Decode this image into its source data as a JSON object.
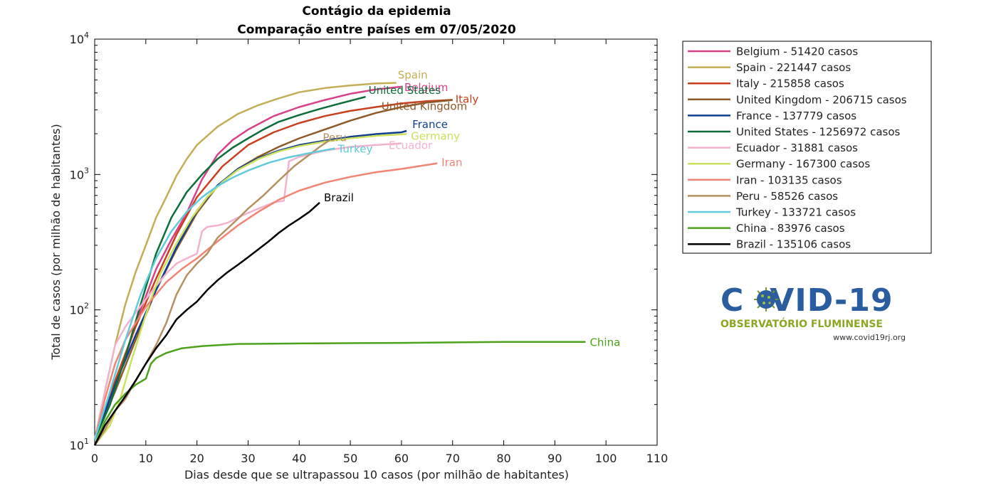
{
  "chart_data": {
    "type": "line",
    "title": "Contágio da epidemia",
    "subtitle": "Comparação entre países em 07/05/2020",
    "xlabel": "Dias desde que se ultrapassou 10 casos (por milhão de habitantes)",
    "ylabel": "Total de casos (por milhão de habitantes)",
    "xlim": [
      0,
      110
    ],
    "ylim": [
      10,
      10000
    ],
    "yscale": "log",
    "xticks": [
      "0",
      "10",
      "20",
      "30",
      "40",
      "50",
      "60",
      "70",
      "80",
      "90",
      "100",
      "110"
    ],
    "yticks": [
      {
        "base": "10",
        "exp": "1"
      },
      {
        "base": "10",
        "exp": "2"
      },
      {
        "base": "10",
        "exp": "3"
      },
      {
        "base": "10",
        "exp": "4"
      }
    ],
    "grid": false,
    "legend_position": "outside-right",
    "series": [
      {
        "name": "Belgium",
        "legend": "Belgium - 51420 casos",
        "label": "Belgium",
        "color": "#d9408a",
        "x": [
          0,
          3,
          6,
          9,
          12,
          15,
          18,
          21,
          24,
          27,
          30,
          35,
          40,
          45,
          50,
          55,
          60
        ],
        "y": [
          11,
          20,
          45,
          100,
          200,
          330,
          520,
          920,
          1400,
          1800,
          2150,
          2700,
          3150,
          3550,
          3950,
          4250,
          4450
        ]
      },
      {
        "name": "Spain",
        "legend": "Spain - 221447 casos",
        "label": "Spain",
        "color": "#c2ae56",
        "x": [
          0,
          2,
          4,
          6,
          8,
          10,
          12,
          14,
          16,
          18,
          20,
          24,
          28,
          32,
          36,
          40,
          45,
          50,
          55,
          59
        ],
        "y": [
          11,
          25,
          55,
          110,
          190,
          300,
          480,
          680,
          980,
          1300,
          1650,
          2250,
          2800,
          3250,
          3650,
          4050,
          4350,
          4550,
          4700,
          4750
        ]
      },
      {
        "name": "Italy",
        "legend": "Italy - 215858 casos",
        "label": "Italy",
        "color": "#c9401e",
        "x": [
          0,
          4,
          8,
          12,
          16,
          20,
          25,
          30,
          35,
          40,
          45,
          50,
          55,
          60,
          65,
          70
        ],
        "y": [
          11,
          30,
          75,
          170,
          360,
          680,
          1150,
          1650,
          2050,
          2400,
          2700,
          2950,
          3150,
          3350,
          3480,
          3560
        ]
      },
      {
        "name": "United Kingdom",
        "legend": "United Kingdom - 206715 casos",
        "label": "United Kingdom",
        "color": "#8f5a2a",
        "x": [
          0,
          4,
          8,
          12,
          16,
          20,
          24,
          28,
          32,
          36,
          40,
          45,
          50,
          55,
          60,
          65,
          70
        ],
        "y": [
          11,
          25,
          60,
          140,
          280,
          520,
          820,
          1100,
          1350,
          1600,
          1850,
          2150,
          2500,
          2850,
          3150,
          3400,
          3550
        ]
      },
      {
        "name": "France",
        "legend": "France - 137779 casos",
        "label": "France",
        "color": "#103d8f",
        "x": [
          0,
          4,
          8,
          12,
          16,
          20,
          24,
          28,
          32,
          36,
          40,
          45,
          50,
          55,
          60,
          61
        ],
        "y": [
          11,
          28,
          65,
          140,
          290,
          540,
          830,
          1100,
          1320,
          1500,
          1650,
          1780,
          1900,
          1990,
          2050,
          2100
        ]
      },
      {
        "name": "United States",
        "legend": "United States - 1256972 casos",
        "label": "United States",
        "color": "#0d6e3a",
        "x": [
          0,
          3,
          6,
          9,
          12,
          15,
          18,
          21,
          24,
          27,
          30,
          33,
          36,
          40,
          44,
          48,
          53
        ],
        "y": [
          11,
          20,
          45,
          110,
          260,
          480,
          740,
          1000,
          1300,
          1580,
          1850,
          2150,
          2450,
          2750,
          3050,
          3350,
          3750
        ]
      },
      {
        "name": "Ecuador",
        "legend": "Ecuador - 31881 casos",
        "label": "Ecuador",
        "color": "#f3b3cf",
        "x": [
          0,
          2,
          4,
          6,
          8,
          10,
          12,
          14,
          16,
          18,
          20,
          21,
          22,
          24,
          26,
          28,
          30,
          32,
          35,
          36,
          37,
          38,
          40,
          45,
          50,
          55,
          60
        ],
        "y": [
          11,
          25,
          55,
          75,
          95,
          120,
          150,
          185,
          220,
          240,
          260,
          380,
          410,
          420,
          440,
          480,
          520,
          560,
          620,
          630,
          640,
          1250,
          1350,
          1500,
          1600,
          1650,
          1700
        ]
      },
      {
        "name": "Germany",
        "legend": "Germany - 167300 casos",
        "label": "Germany",
        "color": "#cde15f",
        "x": [
          0,
          3,
          5,
          7,
          9,
          11,
          13,
          16,
          19,
          22,
          25,
          28,
          32,
          36,
          40,
          45,
          50,
          55,
          61
        ],
        "y": [
          10,
          14,
          22,
          40,
          70,
          120,
          190,
          310,
          480,
          680,
          880,
          1080,
          1300,
          1480,
          1620,
          1750,
          1850,
          1930,
          1990
        ]
      },
      {
        "name": "Iran",
        "legend": "Iran - 103135 casos",
        "label": "Iran",
        "color": "#f28474",
        "x": [
          0,
          2,
          4,
          6,
          8,
          10,
          12,
          14,
          17,
          20,
          24,
          28,
          32,
          36,
          40,
          45,
          50,
          55,
          60,
          67
        ],
        "y": [
          11,
          22,
          40,
          60,
          80,
          105,
          130,
          160,
          200,
          240,
          320,
          420,
          530,
          650,
          760,
          870,
          960,
          1040,
          1100,
          1210
        ]
      },
      {
        "name": "Peru",
        "legend": "Peru - 58526 casos",
        "label": "Peru",
        "color": "#b59060",
        "x": [
          0,
          2,
          4,
          6,
          8,
          10,
          12,
          14,
          16,
          18,
          20,
          22,
          24,
          26,
          28,
          30,
          33,
          36,
          39,
          42,
          44,
          46
        ],
        "y": [
          10,
          13,
          18,
          22,
          30,
          40,
          55,
          80,
          130,
          180,
          220,
          260,
          340,
          400,
          470,
          560,
          700,
          900,
          1150,
          1400,
          1600,
          1800
        ]
      },
      {
        "name": "Turkey",
        "legend": "Turkey - 133721 casos",
        "label": "Turkey",
        "color": "#62cbd9",
        "x": [
          0,
          3,
          6,
          9,
          12,
          15,
          18,
          21,
          24,
          27,
          30,
          34,
          38,
          42,
          47
        ],
        "y": [
          11,
          25,
          60,
          130,
          240,
          380,
          530,
          680,
          820,
          950,
          1070,
          1220,
          1340,
          1440,
          1560
        ]
      },
      {
        "name": "China",
        "legend": "China - 83976 casos",
        "label": "China",
        "color": "#4da21b",
        "x": [
          0,
          2,
          4,
          6,
          8,
          10,
          11,
          12,
          14,
          17,
          21,
          28,
          40,
          60,
          80,
          96
        ],
        "y": [
          10,
          15,
          20,
          24,
          28,
          31,
          40,
          44,
          48,
          52,
          54,
          56,
          56.5,
          57,
          58,
          58
        ]
      },
      {
        "name": "Brazil",
        "legend": "Brazil - 135106 casos",
        "label": "Brazil",
        "color": "#000000",
        "x": [
          0,
          2,
          4,
          6,
          8,
          10,
          12,
          14,
          16,
          18,
          20,
          22,
          24,
          26,
          28,
          30,
          32,
          34,
          36,
          38,
          40,
          42,
          44
        ],
        "y": [
          10,
          14,
          18,
          23,
          30,
          40,
          52,
          65,
          85,
          100,
          115,
          140,
          165,
          190,
          215,
          245,
          280,
          320,
          370,
          420,
          470,
          530,
          620
        ]
      }
    ]
  },
  "logo": {
    "title_pre": "C",
    "title_post": "VID-19",
    "subtitle": "OBSERVATÓRIO FLUMINENSE",
    "url": "www.covid19rj.org"
  }
}
